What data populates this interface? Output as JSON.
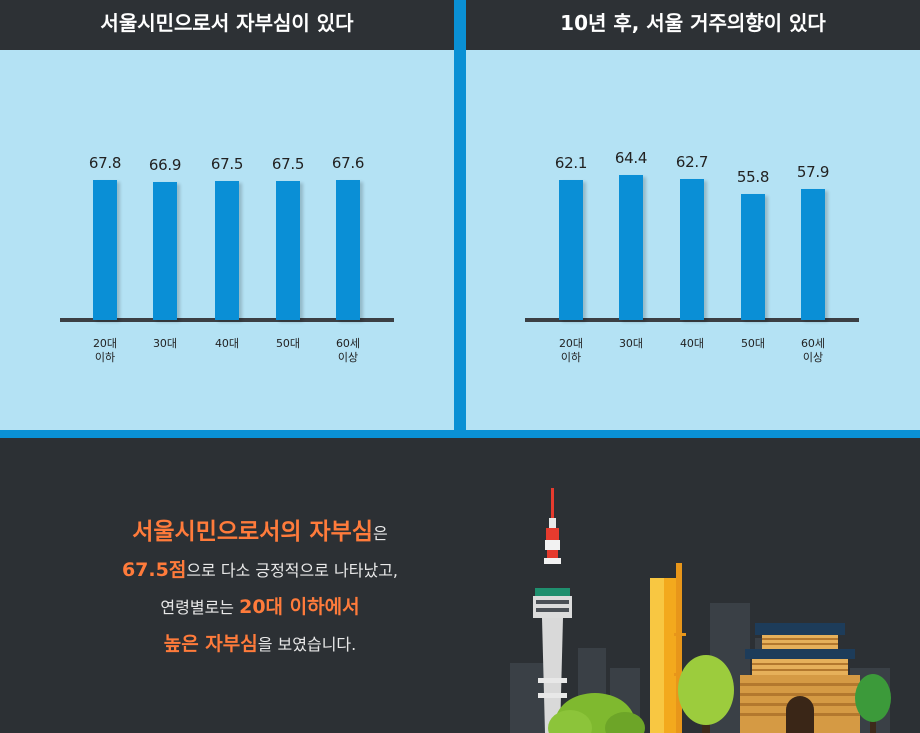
{
  "chart_data": [
    {
      "type": "bar",
      "title": "서울시민으로서 자부심이 있다",
      "categories": [
        "20대\n이하",
        "30대",
        "40대",
        "50대",
        "60세\n이상"
      ],
      "values": [
        67.8,
        66.9,
        67.5,
        67.5,
        67.6
      ],
      "value_labels": [
        "67.8",
        "66.9",
        "67.5",
        "67.5",
        "67.6"
      ],
      "color": "#0a8fd6"
    },
    {
      "type": "bar",
      "title": "10년 후, 서울 거주의향이 있다",
      "categories": [
        "20대\n이하",
        "30대",
        "40대",
        "50대",
        "60세\n이상"
      ],
      "values": [
        62.1,
        64.4,
        62.7,
        55.8,
        57.9
      ],
      "value_labels": [
        "62.1",
        "64.4",
        "62.7",
        "55.8",
        "57.9"
      ],
      "color": "#0a8fd6"
    }
  ],
  "message": {
    "line1_highlight": "서울시민으로서의 자부심",
    "line1_tail": "은",
    "line2_highlight": "67.5점",
    "line2_tail": "으로 다소 긍정적으로 나타났고,",
    "line3_head": "연령별로는 ",
    "line3_highlight": "20대 이하에서",
    "line4_highlight": "높은 자부심",
    "line4_tail": "을 보였습니다."
  },
  "colors": {
    "panel_bg": "#b4e2f4",
    "accent_blue": "#0a90d4",
    "dark": "#2c3034",
    "highlight": "#ff7b3b"
  }
}
